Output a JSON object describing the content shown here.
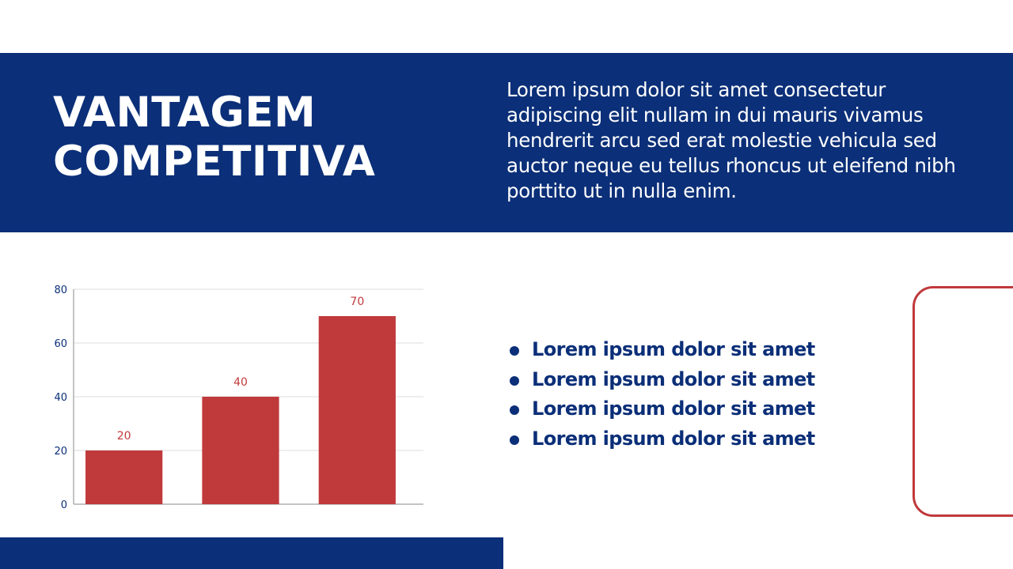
{
  "slide": {
    "title_lines": [
      "VANTAGEM",
      "COMPETITIVA"
    ],
    "intro": "Lorem ipsum dolor sit amet consectetur adipiscing elit nullam in dui mauris vivamus hendrerit arcu sed erat molestie vehicula sed auctor neque eu tellus rhoncus ut eleifend nibh porttito ut in nulla enim.",
    "bullets": [
      "Lorem ipsum dolor sit amet",
      "Lorem ipsum dolor sit amet",
      "Lorem ipsum dolor sit amet",
      "Lorem ipsum dolor sit amet"
    ]
  },
  "colors": {
    "navy": "#0b2f78",
    "red": "#c0393b",
    "white": "#ffffff"
  },
  "chart_data": {
    "type": "bar",
    "categories": [
      "",
      "",
      ""
    ],
    "values": [
      20,
      40,
      70
    ],
    "data_labels": [
      "20",
      "40",
      "70"
    ],
    "ylim": [
      0,
      80
    ],
    "yticks": [
      0,
      20,
      40,
      60,
      80
    ],
    "ytick_labels": [
      "0",
      "20",
      "40",
      "60",
      "80"
    ],
    "grid": true,
    "legend": "none",
    "bar_color": "#c0393b"
  }
}
